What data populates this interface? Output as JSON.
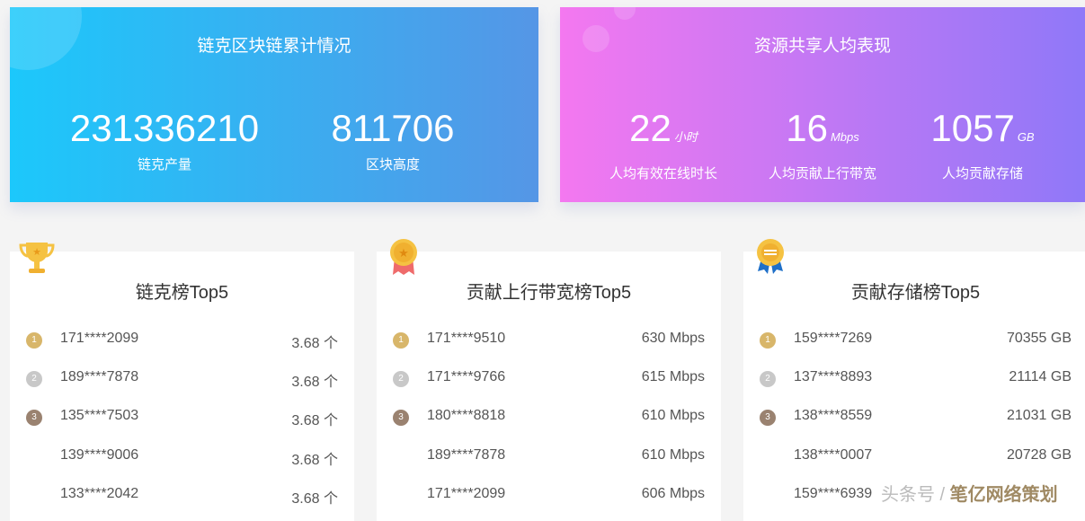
{
  "banner_left": {
    "title": "链克区块链累计情况",
    "stats": [
      {
        "value": "231336210",
        "label": "链克产量"
      },
      {
        "value": "811706",
        "label": "区块高度"
      }
    ]
  },
  "banner_right": {
    "title": "资源共享人均表现",
    "stats": [
      {
        "value": "22",
        "unit": "小时",
        "label": "人均有效在线时长"
      },
      {
        "value": "16",
        "unit": "Mbps",
        "label": "人均贡献上行带宽"
      },
      {
        "value": "1057",
        "unit": "GB",
        "label": "人均贡献存储"
      }
    ]
  },
  "colors": {
    "gold": "#d8b66a",
    "silver": "#c8c8c8",
    "bronze": "#9a8270"
  },
  "boards": [
    {
      "title": "链克榜Top5",
      "icon": "trophy-icon",
      "rows": [
        {
          "id": "171****2099",
          "value": "3.68 个"
        },
        {
          "id": "189****7878",
          "value": "3.68 个"
        },
        {
          "id": "135****7503",
          "value": "3.68 个"
        },
        {
          "id": "139****9006",
          "value": "3.68 个"
        },
        {
          "id": "133****2042",
          "value": "3.68 个"
        }
      ]
    },
    {
      "title": "贡献上行带宽榜Top5",
      "icon": "medal-icon",
      "rows": [
        {
          "id": "171****9510",
          "value": "630 Mbps"
        },
        {
          "id": "171****9766",
          "value": "615 Mbps"
        },
        {
          "id": "180****8818",
          "value": "610 Mbps"
        },
        {
          "id": "189****7878",
          "value": "610 Mbps"
        },
        {
          "id": "171****2099",
          "value": "606 Mbps"
        }
      ]
    },
    {
      "title": "贡献存储榜Top5",
      "icon": "badge-icon",
      "rows": [
        {
          "id": "159****7269",
          "value": "70355 GB"
        },
        {
          "id": "137****8893",
          "value": "21114 GB"
        },
        {
          "id": "138****8559",
          "value": "21031 GB"
        },
        {
          "id": "138****0007",
          "value": "20728 GB"
        },
        {
          "id": "159****6939",
          "value": ""
        }
      ]
    }
  ],
  "watermark": {
    "prefix": "头条号 / ",
    "brand": "笔亿网络策划"
  }
}
